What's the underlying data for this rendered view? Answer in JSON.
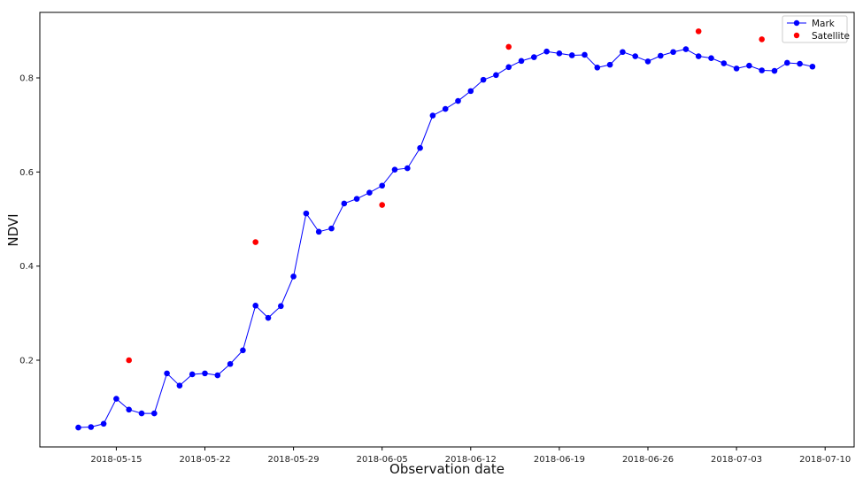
{
  "chart_data": {
    "type": "line",
    "title": "",
    "xlabel": "Observation date",
    "ylabel": "NDVI",
    "x_ticks": [
      "2018-05-15",
      "2018-05-22",
      "2018-05-29",
      "2018-06-05",
      "2018-06-12",
      "2018-06-19",
      "2018-06-26",
      "2018-07-03",
      "2018-07-10"
    ],
    "y_ticks": [
      0.2,
      0.4,
      0.6,
      0.8
    ],
    "xlim": [
      "2018-05-10",
      "2018-07-11"
    ],
    "ylim": [
      0.03,
      0.92
    ],
    "grid": false,
    "legend_position": "top-right",
    "series": [
      {
        "name": "Mark",
        "type": "line-markers",
        "color": "#0000ff",
        "points": [
          [
            "2018-05-12",
            0.057
          ],
          [
            "2018-05-13",
            0.058
          ],
          [
            "2018-05-14",
            0.065
          ],
          [
            "2018-05-15",
            0.118
          ],
          [
            "2018-05-16",
            0.095
          ],
          [
            "2018-05-17",
            0.087
          ],
          [
            "2018-05-18",
            0.087
          ],
          [
            "2018-05-19",
            0.172
          ],
          [
            "2018-05-20",
            0.146
          ],
          [
            "2018-05-21",
            0.17
          ],
          [
            "2018-05-22",
            0.172
          ],
          [
            "2018-05-23",
            0.168
          ],
          [
            "2018-05-24",
            0.192
          ],
          [
            "2018-05-25",
            0.221
          ],
          [
            "2018-05-26",
            0.316
          ],
          [
            "2018-05-27",
            0.29
          ],
          [
            "2018-05-28",
            0.315
          ],
          [
            "2018-05-29",
            0.378
          ],
          [
            "2018-05-30",
            0.512
          ],
          [
            "2018-05-31",
            0.473
          ],
          [
            "2018-06-01",
            0.48
          ],
          [
            "2018-06-02",
            0.533
          ],
          [
            "2018-06-03",
            0.543
          ],
          [
            "2018-06-04",
            0.556
          ],
          [
            "2018-06-05",
            0.571
          ],
          [
            "2018-06-06",
            0.605
          ],
          [
            "2018-06-07",
            0.608
          ],
          [
            "2018-06-08",
            0.651
          ],
          [
            "2018-06-09",
            0.72
          ],
          [
            "2018-06-10",
            0.734
          ],
          [
            "2018-06-11",
            0.751
          ],
          [
            "2018-06-12",
            0.772
          ],
          [
            "2018-06-13",
            0.796
          ],
          [
            "2018-06-14",
            0.806
          ],
          [
            "2018-06-15",
            0.823
          ],
          [
            "2018-06-16",
            0.836
          ],
          [
            "2018-06-17",
            0.844
          ],
          [
            "2018-06-18",
            0.856
          ],
          [
            "2018-06-19",
            0.852
          ],
          [
            "2018-06-20",
            0.848
          ],
          [
            "2018-06-21",
            0.849
          ],
          [
            "2018-06-22",
            0.822
          ],
          [
            "2018-06-23",
            0.828
          ],
          [
            "2018-06-24",
            0.855
          ],
          [
            "2018-06-25",
            0.846
          ],
          [
            "2018-06-26",
            0.835
          ],
          [
            "2018-06-27",
            0.847
          ],
          [
            "2018-06-28",
            0.855
          ],
          [
            "2018-06-29",
            0.861
          ],
          [
            "2018-06-30",
            0.846
          ],
          [
            "2018-07-01",
            0.842
          ],
          [
            "2018-07-02",
            0.831
          ],
          [
            "2018-07-03",
            0.82
          ],
          [
            "2018-07-04",
            0.826
          ],
          [
            "2018-07-05",
            0.816
          ],
          [
            "2018-07-06",
            0.815
          ],
          [
            "2018-07-07",
            0.832
          ],
          [
            "2018-07-08",
            0.83
          ],
          [
            "2018-07-09",
            0.824
          ]
        ]
      },
      {
        "name": "Satellite",
        "type": "scatter",
        "color": "#ff0000",
        "points": [
          [
            "2018-05-16",
            0.2
          ],
          [
            "2018-05-26",
            0.451
          ],
          [
            "2018-06-05",
            0.53
          ],
          [
            "2018-06-15",
            0.866
          ],
          [
            "2018-06-30",
            0.899
          ],
          [
            "2018-07-05",
            0.882
          ]
        ]
      }
    ]
  }
}
